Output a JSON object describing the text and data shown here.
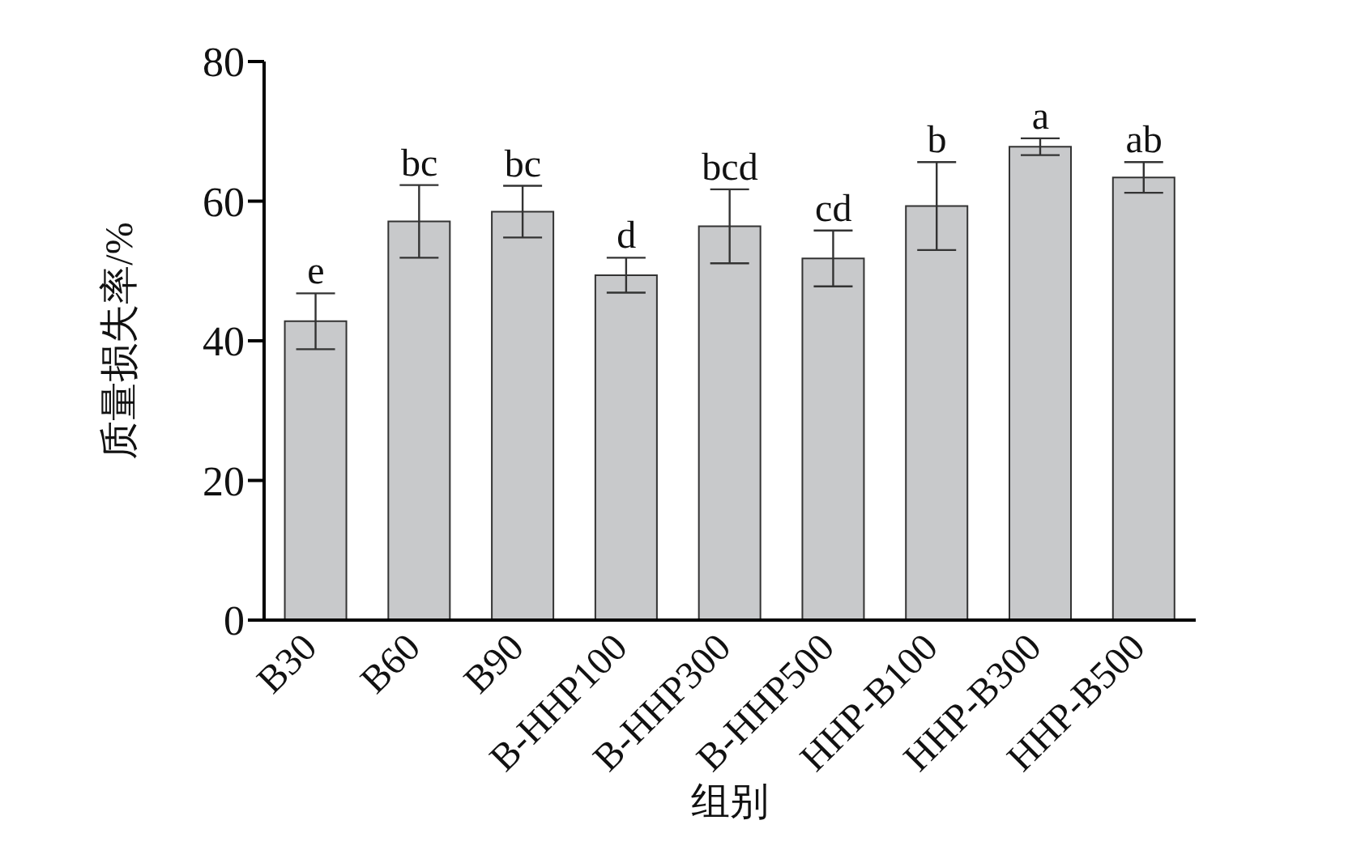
{
  "chart_data": {
    "type": "bar",
    "xlabel": "组别",
    "ylabel": "质量损失率/%",
    "categories": [
      "B30",
      "B60",
      "B90",
      "B-HHP100",
      "B-HHP300",
      "B-HHP500",
      "HHP-B100",
      "HHP-B300",
      "HHP-B500"
    ],
    "values": [
      42.8,
      57.1,
      58.5,
      49.4,
      56.4,
      51.8,
      59.3,
      67.8,
      63.4
    ],
    "errors": [
      4,
      5.2,
      3.7,
      2.5,
      5.3,
      4,
      6.3,
      1.2,
      2.2
    ],
    "color": "#c8c9cb",
    "ylim": [
      0,
      80
    ],
    "yticks": [
      0,
      20,
      40,
      60,
      80
    ],
    "grid": false,
    "legend": false,
    "annotations": [
      {
        "text": "e",
        "x": "B30",
        "y": 46.8
      },
      {
        "text": "bc",
        "x": "B60",
        "y": 62.3
      },
      {
        "text": "bc",
        "x": "B90",
        "y": 62.2
      },
      {
        "text": "d",
        "x": "B-HHP100",
        "y": 51.9
      },
      {
        "text": "bcd",
        "x": "B-HHP300",
        "y": 61.7
      },
      {
        "text": "cd",
        "x": "B-HHP500",
        "y": 55.8
      },
      {
        "text": "b",
        "x": "HHP-B100",
        "y": 65.6
      },
      {
        "text": "a",
        "x": "HHP-B300",
        "y": 69
      },
      {
        "text": "ab",
        "x": "HHP-B500",
        "y": 65.6
      }
    ]
  }
}
